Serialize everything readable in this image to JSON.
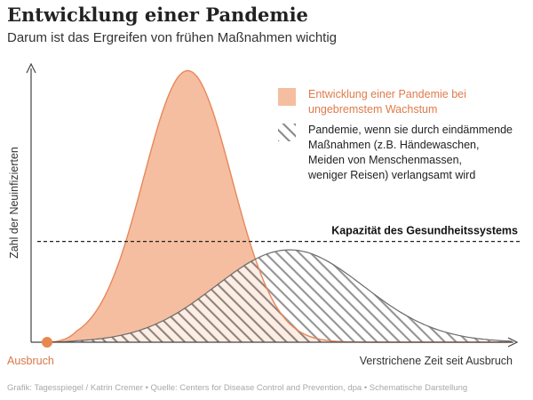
{
  "header": {
    "title": "Entwicklung einer Pandemie",
    "subtitle": "Darum ist das Ergreifen von frühen Maßnahmen wichtig"
  },
  "footer": {
    "source": "Grafik: Tagesspiegel / Katrin Cremer  •  Quelle: Centers for Disease Control and Prevention, dpa  •  Schematische Darstellung"
  },
  "colors": {
    "unchecked_fill": "#f5bea0",
    "unchecked_stroke": "#e8875a",
    "flattened_hatch": "#6b6b6b",
    "origin_dot": "#e8874e",
    "axis": "#444444",
    "origin_label": "#d9774a"
  },
  "chart_data": {
    "type": "area",
    "title": "Entwicklung einer Pandemie",
    "xlabel": "Verstrichene Zeit seit Ausbruch",
    "ylabel": "Zahl der Neuinfizierten",
    "origin_label": "Ausbruch",
    "xlim": [
      0,
      100
    ],
    "ylim": [
      0,
      100
    ],
    "series": [
      {
        "name": "Entwicklung einer Pandemie bei ungebremstem Wachstum",
        "legend_lines": [
          "Entwicklung einer Pandemie bei",
          "ungebremstem Wachstum"
        ],
        "style": "solid",
        "peak_x": 30,
        "peak_y": 97,
        "spread": 9.5
      },
      {
        "name": "Pandemie, wenn sie durch eindämmende Maßnahmen (z.B. Händewaschen, Meiden von Menschenmassen, weniger Reisen) verlangsamt wird",
        "legend_lines": [
          "Pandemie, wenn sie durch eindämmende",
          "Maßnahmen (z.B. Händewaschen,",
          "Meiden von Menschenmassen,",
          "weniger Reisen) verlangsamt wird"
        ],
        "style": "hatched",
        "peak_x": 52,
        "peak_y": 33,
        "spread": 16
      }
    ],
    "reference_line": {
      "label": "Kapazität des Gesundheitssystems",
      "y": 36
    },
    "schematic": true
  }
}
